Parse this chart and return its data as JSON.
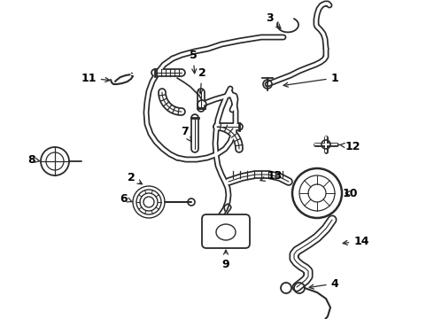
{
  "bg_color": "#ffffff",
  "line_color": "#2a2a2a",
  "label_color": "#000000",
  "fig_w": 4.9,
  "fig_h": 3.6,
  "dpi": 100
}
